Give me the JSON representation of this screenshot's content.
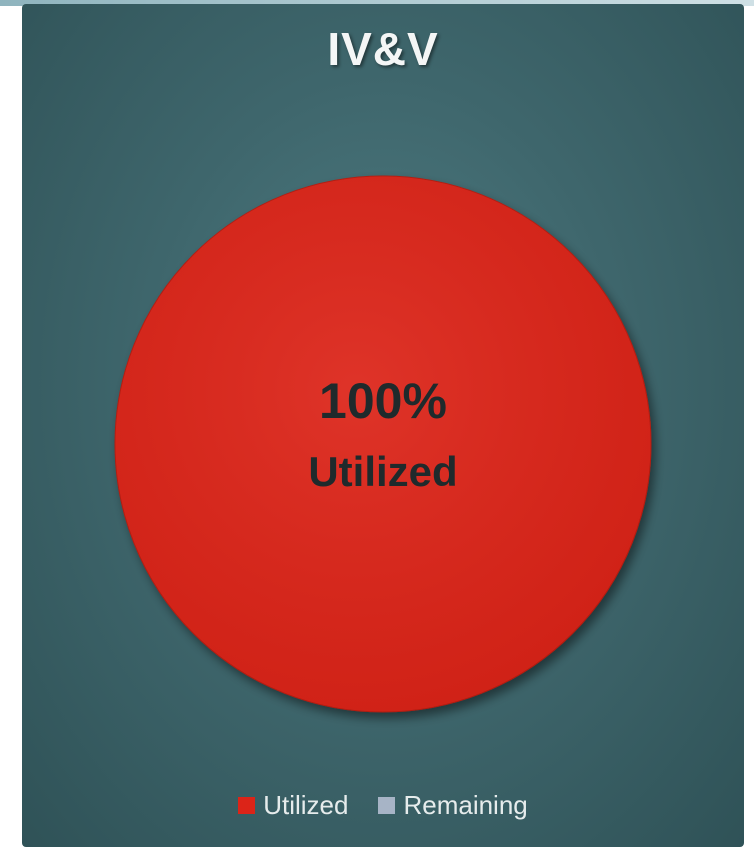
{
  "chart_data": {
    "type": "pie",
    "title": "IV&V",
    "categories": [
      "Utilized",
      "Remaining"
    ],
    "values": [
      100,
      0
    ],
    "colors": [
      "#dc2418",
      "#a7b4c6"
    ],
    "center_value": "100%",
    "center_text": "Utilized",
    "legend_position": "bottom"
  }
}
